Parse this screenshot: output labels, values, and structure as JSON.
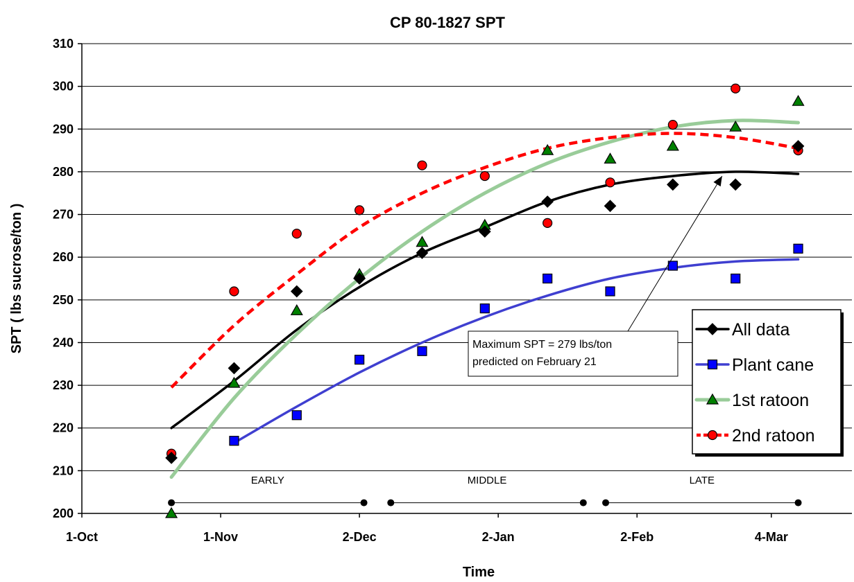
{
  "chart_data": {
    "type": "scatter",
    "title": "CP 80-1827 SPT",
    "xlabel": "Time",
    "ylabel": "SPT ( lbs sucrose/ton )",
    "x_unit": "days since 1-Oct",
    "ylim": [
      200,
      310
    ],
    "xlim": [
      0,
      172
    ],
    "yticks": [
      200,
      210,
      220,
      230,
      240,
      250,
      260,
      270,
      280,
      290,
      300,
      310
    ],
    "xticks": [
      {
        "x": 0,
        "label": "1-Oct"
      },
      {
        "x": 31,
        "label": "1-Nov"
      },
      {
        "x": 62,
        "label": "2-Dec"
      },
      {
        "x": 93,
        "label": "2-Jan"
      },
      {
        "x": 124,
        "label": "2-Feb"
      },
      {
        "x": 154,
        "label": "4-Mar"
      }
    ],
    "grid": "horizontal",
    "legend_position": "right",
    "series": [
      {
        "name": "All data",
        "color": "#000000",
        "marker": "diamond",
        "line": "solid",
        "points": [
          [
            20,
            213
          ],
          [
            34,
            234
          ],
          [
            48,
            252
          ],
          [
            62,
            255
          ],
          [
            76,
            261
          ],
          [
            90,
            266
          ],
          [
            104,
            273
          ],
          [
            118,
            272
          ],
          [
            132,
            277
          ],
          [
            146,
            277
          ],
          [
            160,
            286
          ]
        ],
        "trend": [
          [
            20,
            220
          ],
          [
            34,
            231
          ],
          [
            48,
            243
          ],
          [
            62,
            253
          ],
          [
            76,
            261
          ],
          [
            90,
            267
          ],
          [
            104,
            273
          ],
          [
            118,
            277
          ],
          [
            132,
            279
          ],
          [
            146,
            280
          ],
          [
            160,
            279.5
          ]
        ]
      },
      {
        "name": "Plant cane",
        "color": "#0000ff",
        "trend_color": "#3f3fd0",
        "marker": "square",
        "line": "solid",
        "points": [
          [
            34,
            217
          ],
          [
            48,
            223
          ],
          [
            62,
            236
          ],
          [
            76,
            238
          ],
          [
            90,
            248
          ],
          [
            104,
            255
          ],
          [
            118,
            252
          ],
          [
            132,
            258
          ],
          [
            146,
            255
          ],
          [
            160,
            262
          ]
        ],
        "trend": [
          [
            34,
            216.5
          ],
          [
            48,
            225
          ],
          [
            62,
            233
          ],
          [
            76,
            240
          ],
          [
            90,
            246
          ],
          [
            104,
            251
          ],
          [
            118,
            255
          ],
          [
            132,
            257.5
          ],
          [
            146,
            259
          ],
          [
            160,
            259.5
          ]
        ]
      },
      {
        "name": "1st ratoon",
        "color": "#008000",
        "trend_color": "#99cc99",
        "marker": "triangle",
        "line": "solid",
        "points": [
          [
            20,
            200
          ],
          [
            34,
            230.5
          ],
          [
            48,
            247.5
          ],
          [
            62,
            256
          ],
          [
            76,
            263.5
          ],
          [
            90,
            267.5
          ],
          [
            104,
            285
          ],
          [
            118,
            283
          ],
          [
            132,
            286
          ],
          [
            146,
            290.5
          ],
          [
            160,
            296.5
          ]
        ],
        "trend": [
          [
            20,
            208.5
          ],
          [
            34,
            227
          ],
          [
            48,
            242
          ],
          [
            62,
            255
          ],
          [
            76,
            266
          ],
          [
            90,
            275
          ],
          [
            104,
            282
          ],
          [
            118,
            287
          ],
          [
            132,
            290.5
          ],
          [
            146,
            292
          ],
          [
            160,
            291.5
          ]
        ]
      },
      {
        "name": "2nd ratoon",
        "color": "#ff0000",
        "marker": "circle",
        "line": "dashed",
        "points": [
          [
            20,
            214
          ],
          [
            34,
            252
          ],
          [
            48,
            265.5
          ],
          [
            62,
            271
          ],
          [
            76,
            281.5
          ],
          [
            90,
            279
          ],
          [
            104,
            268
          ],
          [
            118,
            277.5
          ],
          [
            132,
            291
          ],
          [
            146,
            299.5
          ],
          [
            160,
            285
          ]
        ],
        "trend": [
          [
            20,
            229.5
          ],
          [
            34,
            244
          ],
          [
            48,
            256
          ],
          [
            62,
            267
          ],
          [
            76,
            275
          ],
          [
            90,
            281
          ],
          [
            104,
            285.5
          ],
          [
            118,
            288
          ],
          [
            132,
            289
          ],
          [
            146,
            288
          ],
          [
            160,
            285.5
          ]
        ]
      }
    ],
    "annotation": {
      "lines": [
        "Maximum SPT = 279 lbs/ton",
        "predicted on February 21"
      ],
      "points_to": {
        "x": 143,
        "y": 279
      }
    },
    "periods": [
      {
        "label": "EARLY",
        "start": 20,
        "end": 63
      },
      {
        "label": "MIDDLE",
        "start": 69,
        "end": 112
      },
      {
        "label": "LATE",
        "start": 117,
        "end": 160
      }
    ],
    "period_line_y": 202.5,
    "period_label_y": 207
  }
}
